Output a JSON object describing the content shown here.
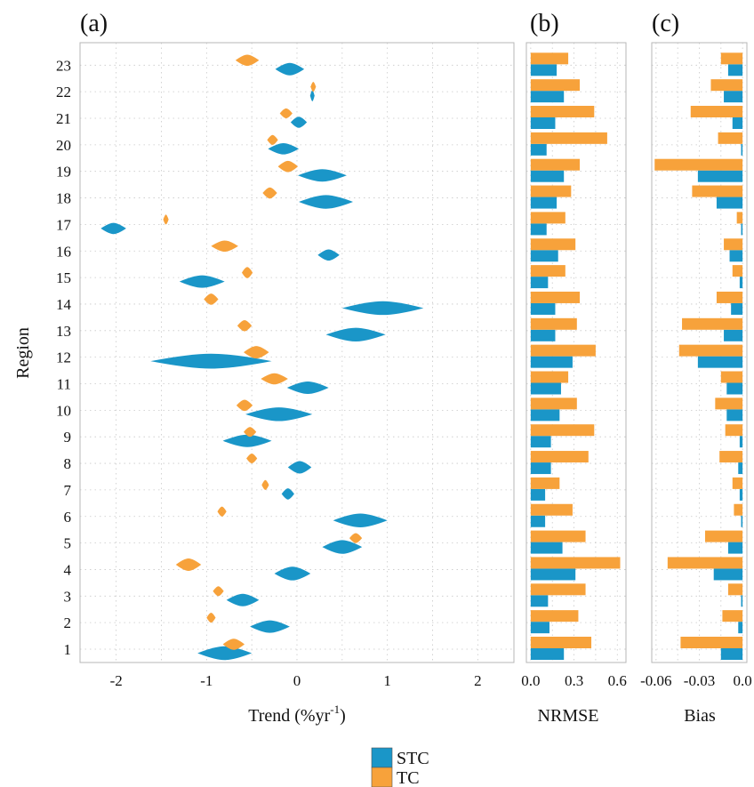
{
  "chart_data": [
    {
      "panel": "(a)",
      "type": "violin",
      "xlabel": "Trend  (%yr",
      "xlabel_sup": "-1",
      "ylabel": "Region",
      "xlim": [
        -2.4,
        2.4
      ],
      "xticks": [
        "-2",
        "-1",
        "0",
        "1",
        "2"
      ],
      "categories": [
        "1",
        "2",
        "3",
        "4",
        "5",
        "6",
        "7",
        "8",
        "9",
        "10",
        "11",
        "12",
        "13",
        "14",
        "15",
        "16",
        "17",
        "18",
        "19",
        "20",
        "21",
        "22",
        "23"
      ],
      "series": [
        {
          "name": "STC",
          "color": "#1a96c8",
          "centers": [
            -0.8,
            -0.3,
            -0.6,
            -0.05,
            0.5,
            0.7,
            -0.1,
            0.03,
            -0.55,
            -0.2,
            0.12,
            -0.95,
            0.65,
            0.95,
            -1.05,
            0.35,
            -2.03,
            0.32,
            0.28,
            -0.15,
            0.02,
            0.17,
            -0.08
          ],
          "half_widths": [
            0.3,
            0.22,
            0.18,
            0.2,
            0.22,
            0.3,
            0.07,
            0.13,
            0.27,
            0.37,
            0.23,
            0.67,
            0.33,
            0.45,
            0.25,
            0.12,
            0.14,
            0.3,
            0.27,
            0.17,
            0.09,
            0.02,
            0.16
          ],
          "heights": [
            0.55,
            0.5,
            0.5,
            0.55,
            0.55,
            0.55,
            0.45,
            0.5,
            0.5,
            0.55,
            0.5,
            0.6,
            0.55,
            0.55,
            0.5,
            0.45,
            0.45,
            0.55,
            0.5,
            0.45,
            0.45,
            0.45,
            0.5
          ]
        },
        {
          "name": "TC",
          "color": "#f7a23b",
          "centers": [
            -0.7,
            -0.95,
            -0.87,
            -1.2,
            0.65,
            -0.83,
            -0.35,
            -0.5,
            -0.52,
            -0.58,
            -0.25,
            -0.45,
            -0.58,
            -0.95,
            -0.55,
            -0.8,
            -1.45,
            -0.3,
            -0.1,
            -0.27,
            -0.12,
            0.18,
            -0.55
          ],
          "half_widths": [
            0.12,
            0.05,
            0.06,
            0.14,
            0.07,
            0.05,
            0.04,
            0.06,
            0.07,
            0.09,
            0.15,
            0.14,
            0.08,
            0.08,
            0.06,
            0.15,
            0.03,
            0.08,
            0.11,
            0.06,
            0.07,
            0.03,
            0.13
          ],
          "heights": [
            0.45,
            0.4,
            0.4,
            0.5,
            0.4,
            0.4,
            0.4,
            0.4,
            0.4,
            0.45,
            0.45,
            0.5,
            0.45,
            0.45,
            0.45,
            0.45,
            0.4,
            0.45,
            0.45,
            0.4,
            0.4,
            0.4,
            0.45
          ]
        }
      ]
    },
    {
      "panel": "(b)",
      "type": "bar",
      "orientation": "horizontal",
      "xlabel": "NRMSE",
      "xlim": [
        -0.03,
        0.66
      ],
      "xticks": [
        "0.0",
        "0.3",
        "0.6"
      ],
      "tick_values": [
        0,
        0.3,
        0.6
      ],
      "categories": [
        "1",
        "2",
        "3",
        "4",
        "5",
        "6",
        "7",
        "8",
        "9",
        "10",
        "11",
        "12",
        "13",
        "14",
        "15",
        "16",
        "17",
        "18",
        "19",
        "20",
        "21",
        "22",
        "23"
      ],
      "series": [
        {
          "name": "STC",
          "color": "#1a96c8",
          "values": [
            0.23,
            0.13,
            0.12,
            0.31,
            0.22,
            0.1,
            0.1,
            0.14,
            0.14,
            0.2,
            0.21,
            0.29,
            0.17,
            0.17,
            0.12,
            0.19,
            0.11,
            0.18,
            0.23,
            0.11,
            0.17,
            0.23,
            0.18
          ]
        },
        {
          "name": "TC",
          "color": "#f7a23b",
          "values": [
            0.42,
            0.33,
            0.38,
            0.62,
            0.38,
            0.29,
            0.2,
            0.4,
            0.44,
            0.32,
            0.26,
            0.45,
            0.32,
            0.34,
            0.24,
            0.31,
            0.24,
            0.28,
            0.34,
            0.53,
            0.44,
            0.34,
            0.26
          ]
        }
      ]
    },
    {
      "panel": "(c)",
      "type": "bar",
      "orientation": "horizontal",
      "xlabel": "Bias",
      "xlim": [
        -0.063,
        0.003
      ],
      "xticks": [
        "-0.06",
        "-0.03",
        "0.0"
      ],
      "tick_values": [
        -0.06,
        -0.03,
        0
      ],
      "categories": [
        "1",
        "2",
        "3",
        "4",
        "5",
        "6",
        "7",
        "8",
        "9",
        "10",
        "11",
        "12",
        "13",
        "14",
        "15",
        "16",
        "17",
        "18",
        "19",
        "20",
        "21",
        "22",
        "23"
      ],
      "series": [
        {
          "name": "STC",
          "color": "#1a96c8",
          "values": [
            -0.015,
            -0.003,
            -0.001,
            -0.02,
            -0.01,
            -0.001,
            -0.002,
            -0.003,
            -0.002,
            -0.011,
            -0.011,
            -0.031,
            -0.013,
            -0.008,
            -0.002,
            -0.009,
            -0.001,
            -0.018,
            -0.031,
            -0.001,
            -0.007,
            -0.013,
            -0.01
          ]
        },
        {
          "name": "TC",
          "color": "#f7a23b",
          "values": [
            -0.043,
            -0.014,
            -0.01,
            -0.052,
            -0.026,
            -0.006,
            -0.007,
            -0.016,
            -0.012,
            -0.019,
            -0.015,
            -0.044,
            -0.042,
            -0.018,
            -0.007,
            -0.013,
            -0.004,
            -0.035,
            -0.061,
            -0.017,
            -0.036,
            -0.022,
            -0.015
          ]
        }
      ]
    }
  ],
  "legend": [
    {
      "name": "STC",
      "color": "#1a96c8"
    },
    {
      "name": "TC",
      "color": "#f7a23b"
    }
  ]
}
